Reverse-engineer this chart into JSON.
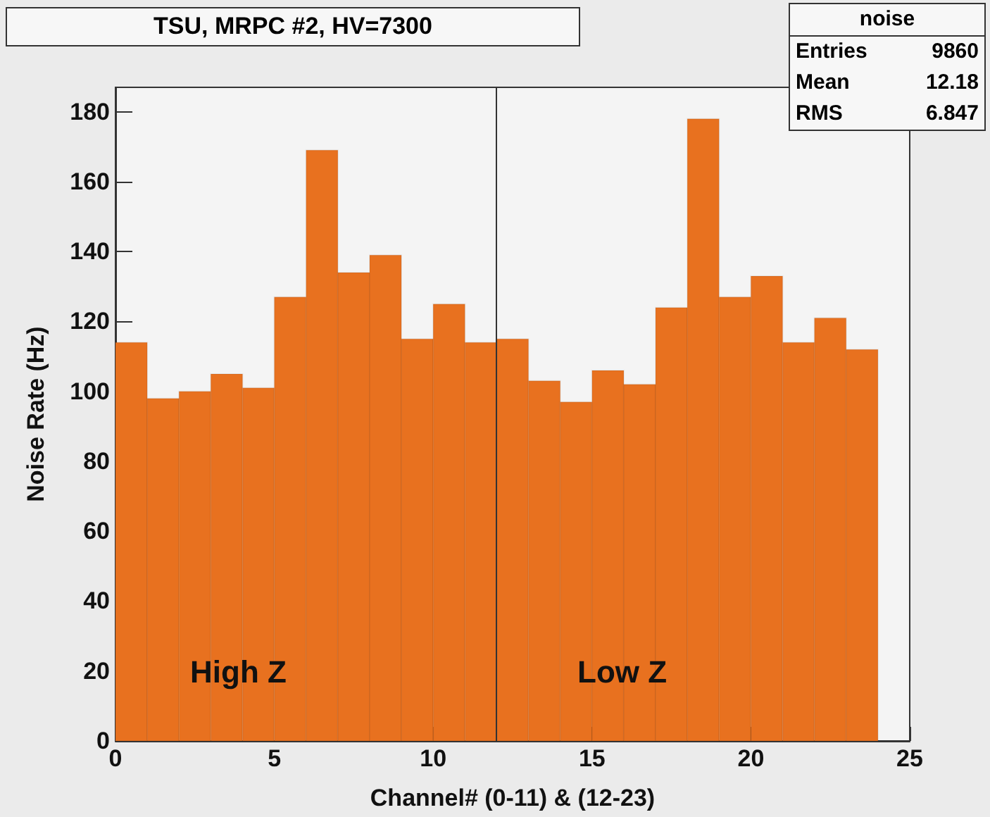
{
  "chart_data": {
    "type": "histogram",
    "title": "TSU, MRPC #2, HV=7300",
    "xlabel": "Channel# (0-11) & (12-23)",
    "ylabel": "Noise Rate (Hz)",
    "bins": [
      0,
      1,
      2,
      3,
      4,
      5,
      6,
      7,
      8,
      9,
      10,
      11,
      12,
      13,
      14,
      15,
      16,
      17,
      18,
      19,
      20,
      21,
      22,
      23,
      24
    ],
    "values": [
      114,
      98,
      100,
      105,
      101,
      127,
      169,
      134,
      139,
      115,
      125,
      114,
      115,
      103,
      97,
      106,
      102,
      124,
      178,
      127,
      133,
      114,
      121,
      112
    ],
    "color": "#e8711f",
    "xlim": [
      0,
      25
    ],
    "xticks": [
      0,
      5,
      10,
      15,
      20,
      25
    ],
    "ylim": [
      0,
      187
    ],
    "yticks": [
      0,
      20,
      40,
      60,
      80,
      100,
      120,
      140,
      160,
      180
    ],
    "grid": false,
    "ref_lines": [
      {
        "axis": "x",
        "value": 12,
        "color": "#333333"
      }
    ],
    "annotations": [
      "noise",
      "Entries 9860",
      "Mean 12.18",
      "RMS 6.847",
      "High Z",
      "Low Z"
    ]
  }
}
